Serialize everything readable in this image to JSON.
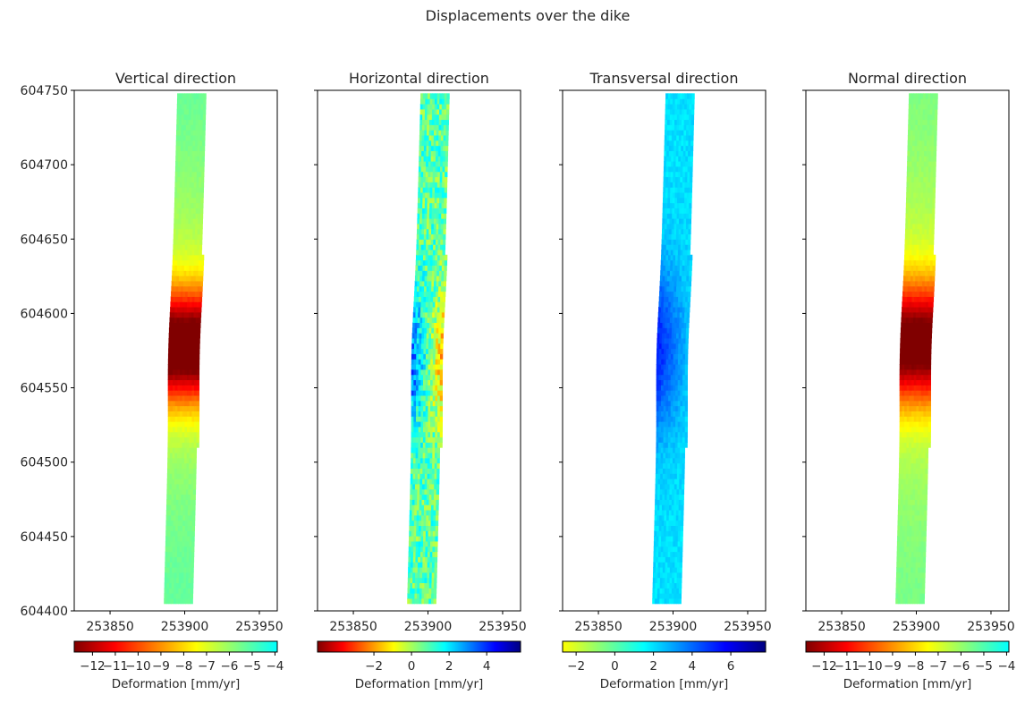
{
  "title": "Displacements over the dike",
  "chart_data": [
    {
      "type": "heatmap",
      "title": "Vertical direction",
      "x_ticks": [
        253850,
        253900,
        253950
      ],
      "x_range": [
        253826,
        253962
      ],
      "y_ticks": [
        604400,
        604450,
        604500,
        604550,
        604600,
        604650,
        604700,
        604750
      ],
      "y_range": [
        604400,
        604750
      ],
      "colormap": "jet-truncated",
      "colorbar": {
        "label": "Deformation [mm/yr]",
        "range": [
          -12.8,
          -3.9
        ],
        "ticks": [
          -12,
          -11,
          -10,
          -9,
          -8,
          -7,
          -6,
          -5,
          -4
        ],
        "tick_labels": [
          "−12",
          "−11",
          "−10",
          "−9",
          "−8",
          "−7",
          "−6",
          "−5",
          "−4"
        ],
        "colors": [
          "#800000",
          "#ff0000",
          "#ff8000",
          "#ffff00",
          "#80ff80",
          "#00ffff"
        ]
      }
    },
    {
      "type": "heatmap",
      "title": "Horizontal direction",
      "x_ticks": [
        253850,
        253900,
        253950
      ],
      "x_range": [
        253826,
        253962
      ],
      "y_range": [
        604400,
        604750
      ],
      "colormap": "jet-reversed",
      "colorbar": {
        "label": "Deformation [mm/yr]",
        "range": [
          -5,
          5.8
        ],
        "ticks": [
          -2,
          0,
          2,
          4
        ],
        "tick_labels": [
          "−2",
          "0",
          "2",
          "4"
        ],
        "colors": [
          "#800000",
          "#ff0000",
          "#ff8000",
          "#ffff00",
          "#80ff80",
          "#00ffff",
          "#0080ff",
          "#0000ff",
          "#000080"
        ]
      }
    },
    {
      "type": "heatmap",
      "title": "Transversal direction",
      "x_ticks": [
        253850,
        253900,
        253950
      ],
      "x_range": [
        253826,
        253962
      ],
      "y_range": [
        604400,
        604750
      ],
      "colormap": "jet-reversed-truncated",
      "colorbar": {
        "label": "Deformation [mm/yr]",
        "range": [
          -2.7,
          7.8
        ],
        "ticks": [
          -2,
          0,
          2,
          4,
          6
        ],
        "tick_labels": [
          "−2",
          "0",
          "2",
          "4",
          "6"
        ],
        "colors": [
          "#ffff00",
          "#80ff80",
          "#00ffff",
          "#0080ff",
          "#0000ff",
          "#000080"
        ]
      }
    },
    {
      "type": "heatmap",
      "title": "Normal direction",
      "x_ticks": [
        253850,
        253900,
        253950
      ],
      "x_range": [
        253826,
        253962
      ],
      "y_range": [
        604400,
        604750
      ],
      "colormap": "jet-truncated",
      "colorbar": {
        "label": "Deformation [mm/yr]",
        "range": [
          -12.8,
          -3.9
        ],
        "ticks": [
          -12,
          -11,
          -10,
          -9,
          -8,
          -7,
          -6,
          -5,
          -4
        ],
        "tick_labels": [
          "−12",
          "−11",
          "−10",
          "−9",
          "−8",
          "−7",
          "−6",
          "−5",
          "−4"
        ],
        "colors": [
          "#800000",
          "#ff0000",
          "#ff8000",
          "#ffff00",
          "#80ff80",
          "#00ffff"
        ]
      }
    }
  ]
}
